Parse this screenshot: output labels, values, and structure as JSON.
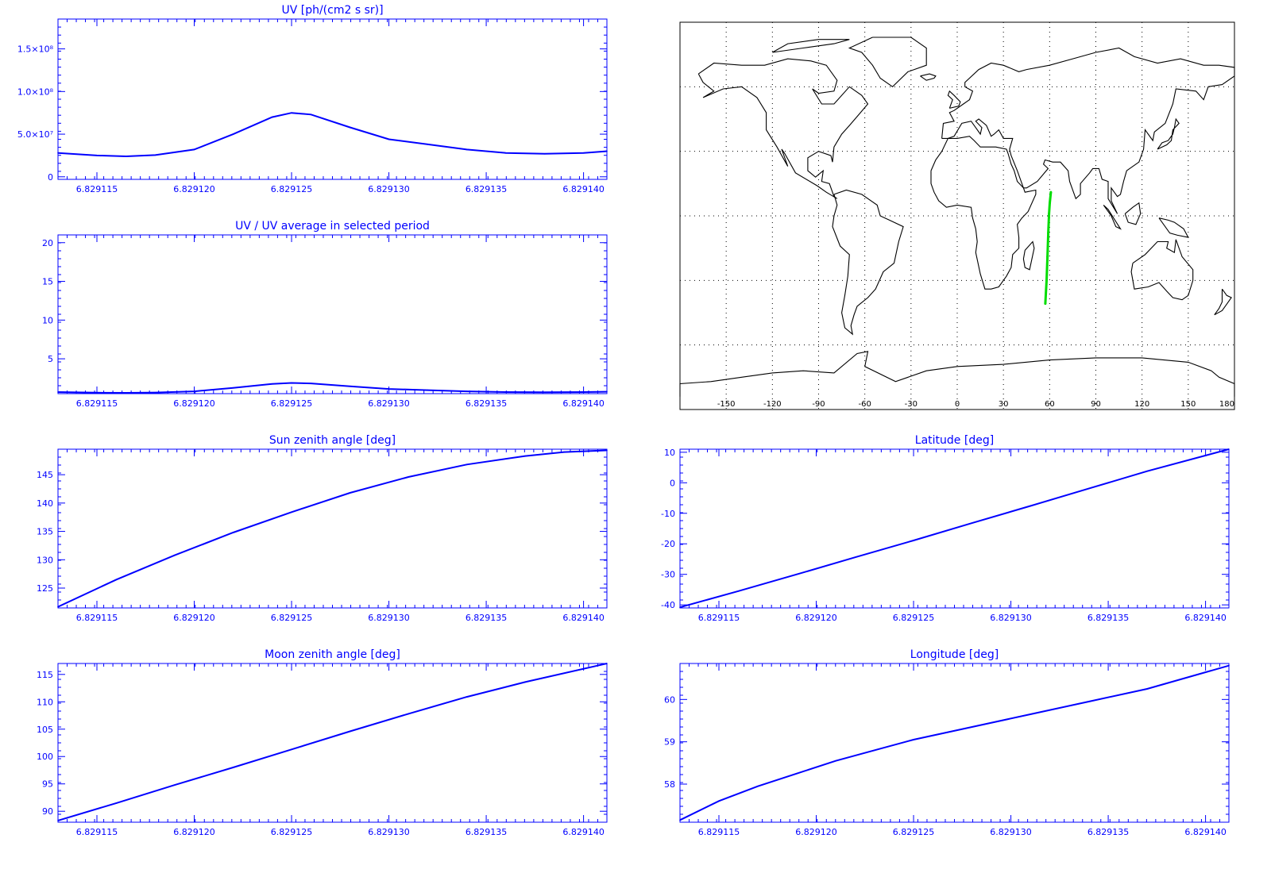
{
  "colors": {
    "axis": "#0000ff",
    "series": "#0000ff",
    "map_line": "#000000",
    "track": "#00dd00",
    "background": "#ffffff"
  },
  "chart_data": [
    {
      "id": "uv",
      "type": "line",
      "title": "UV [ph/(cm2 s sr)]",
      "xlim": [
        6.829113,
        6.8291412
      ],
      "ylim": [
        -3000000,
        185000000
      ],
      "x_ticks": [
        6.829115,
        6.82912,
        6.829125,
        6.82913,
        6.829135,
        6.82914
      ],
      "x_tick_labels": [
        "6.829115",
        "6.829120",
        "6.829125",
        "6.829130",
        "6.829135",
        "6.829140"
      ],
      "y_ticks": [
        0,
        50000000,
        100000000,
        150000000
      ],
      "y_tick_labels": [
        "0",
        "5.0×10⁷",
        "1.0×10⁸",
        "1.5×10⁸"
      ],
      "x": [
        6.829113,
        6.829115,
        6.8291165,
        6.829118,
        6.82912,
        6.829122,
        6.829124,
        6.829125,
        6.829126,
        6.829128,
        6.82913,
        6.829132,
        6.829134,
        6.829136,
        6.829138,
        6.82914,
        6.8291412
      ],
      "values": [
        28000000,
        25000000,
        24000000,
        25500000,
        32000000,
        50000000,
        70000000,
        75000000,
        73000000,
        58000000,
        44000000,
        38000000,
        32000000,
        28000000,
        27000000,
        28000000,
        30000000
      ]
    },
    {
      "id": "uv-ratio",
      "type": "line",
      "title": "UV / UV average in selected period",
      "xlim": [
        6.829113,
        6.8291412
      ],
      "ylim": [
        0.5,
        21
      ],
      "x_ticks": [
        6.829115,
        6.82912,
        6.829125,
        6.82913,
        6.829135,
        6.82914
      ],
      "x_tick_labels": [
        "6.829115",
        "6.829120",
        "6.829125",
        "6.829130",
        "6.829135",
        "6.829140"
      ],
      "y_ticks": [
        5,
        10,
        15,
        20
      ],
      "y_tick_labels": [
        "5",
        "10",
        "15",
        "20"
      ],
      "x": [
        6.829113,
        6.829115,
        6.8291165,
        6.829118,
        6.82912,
        6.829122,
        6.829124,
        6.829125,
        6.829126,
        6.829128,
        6.82913,
        6.829132,
        6.829134,
        6.829136,
        6.829138,
        6.82914,
        6.8291412
      ],
      "values": [
        0.7,
        0.62,
        0.6,
        0.64,
        0.8,
        1.25,
        1.75,
        1.88,
        1.82,
        1.45,
        1.1,
        0.95,
        0.8,
        0.7,
        0.68,
        0.7,
        0.75
      ]
    },
    {
      "id": "sun-zenith",
      "type": "line",
      "title": "Sun zenith angle [deg]",
      "xlim": [
        6.829113,
        6.8291412
      ],
      "ylim": [
        121.5,
        149.5
      ],
      "x_ticks": [
        6.829115,
        6.82912,
        6.829125,
        6.82913,
        6.829135,
        6.82914
      ],
      "x_tick_labels": [
        "6.829115",
        "6.829120",
        "6.829125",
        "6.829130",
        "6.829135",
        "6.829140"
      ],
      "y_ticks": [
        125,
        130,
        135,
        140,
        145
      ],
      "y_tick_labels": [
        "125",
        "130",
        "135",
        "140",
        "145"
      ],
      "x": [
        6.829113,
        6.829116,
        6.829119,
        6.829122,
        6.829125,
        6.829128,
        6.829131,
        6.829134,
        6.829137,
        6.829139,
        6.8291412
      ],
      "values": [
        121.7,
        126.5,
        130.8,
        134.8,
        138.4,
        141.8,
        144.6,
        146.8,
        148.3,
        149.0,
        149.3
      ]
    },
    {
      "id": "latitude",
      "type": "line",
      "title": "Latitude [deg]",
      "xlim": [
        6.829113,
        6.8291412
      ],
      "ylim": [
        -41,
        11
      ],
      "x_ticks": [
        6.829115,
        6.82912,
        6.829125,
        6.82913,
        6.829135,
        6.82914
      ],
      "x_tick_labels": [
        "6.829115",
        "6.829120",
        "6.829125",
        "6.829130",
        "6.829135",
        "6.829140"
      ],
      "y_ticks": [
        -40,
        -30,
        -20,
        -10,
        0,
        10
      ],
      "y_tick_labels": [
        "-40",
        "-30",
        "-20",
        "-10",
        "0",
        "10"
      ],
      "x": [
        6.829113,
        6.829116,
        6.829119,
        6.829122,
        6.829125,
        6.829128,
        6.829131,
        6.829134,
        6.829137,
        6.8291412
      ],
      "values": [
        -40.8,
        -35.5,
        -30.0,
        -24.4,
        -18.9,
        -13.2,
        -7.6,
        -1.9,
        3.8,
        11.0
      ]
    },
    {
      "id": "moon-zenith",
      "type": "line",
      "title": "Moon zenith angle [deg]",
      "xlim": [
        6.829113,
        6.8291412
      ],
      "ylim": [
        88,
        117
      ],
      "x_ticks": [
        6.829115,
        6.82912,
        6.829125,
        6.82913,
        6.829135,
        6.82914
      ],
      "x_tick_labels": [
        "6.829115",
        "6.829120",
        "6.829125",
        "6.829130",
        "6.829135",
        "6.829140"
      ],
      "y_ticks": [
        90,
        95,
        100,
        105,
        110,
        115
      ],
      "y_tick_labels": [
        "90",
        "95",
        "100",
        "105",
        "110",
        "115"
      ],
      "x": [
        6.829113,
        6.829116,
        6.829119,
        6.829122,
        6.829125,
        6.829128,
        6.829131,
        6.829134,
        6.829137,
        6.8291412
      ],
      "values": [
        88.3,
        91.5,
        94.8,
        98.0,
        101.3,
        104.6,
        107.8,
        110.9,
        113.6,
        117.0
      ]
    },
    {
      "id": "longitude",
      "type": "line",
      "title": "Longitude [deg]",
      "xlim": [
        6.829113,
        6.8291412
      ],
      "ylim": [
        57.1,
        60.85
      ],
      "x_ticks": [
        6.829115,
        6.82912,
        6.829125,
        6.82913,
        6.829135,
        6.82914
      ],
      "x_tick_labels": [
        "6.829115",
        "6.829120",
        "6.829125",
        "6.829130",
        "6.829135",
        "6.829140"
      ],
      "y_ticks": [
        58,
        59,
        60
      ],
      "y_tick_labels": [
        "58",
        "59",
        "60"
      ],
      "x": [
        6.829113,
        6.829115,
        6.829117,
        6.829119,
        6.829121,
        6.829123,
        6.829125,
        6.829128,
        6.829131,
        6.829134,
        6.829137,
        6.8291412
      ],
      "values": [
        57.15,
        57.6,
        57.95,
        58.25,
        58.55,
        58.8,
        59.05,
        59.35,
        59.65,
        59.95,
        60.25,
        60.8
      ]
    },
    {
      "id": "ground-track-map",
      "type": "scatter",
      "title": "",
      "xlim": [
        -180,
        180
      ],
      "ylim": [
        -90,
        90
      ],
      "x_ticks": [
        -150,
        -120,
        -90,
        -60,
        -30,
        0,
        30,
        60,
        90,
        120,
        150,
        180
      ],
      "x_tick_labels": [
        "-150",
        "-120",
        "-90",
        "-60",
        "-30",
        "0",
        "30",
        "60",
        "90",
        "120",
        "150",
        "180"
      ],
      "gridlines_lon": [
        -150,
        -120,
        -90,
        -60,
        -30,
        0,
        30,
        60,
        90,
        120,
        150
      ],
      "gridlines_lat": [
        -60,
        -30,
        0,
        30,
        60
      ],
      "track_lon": [
        57.2,
        58.0,
        58.6,
        59.1,
        59.6,
        60.1,
        60.8
      ],
      "track_lat": [
        -40.8,
        -30.0,
        -19.0,
        -8.0,
        1.0,
        6.0,
        11.0
      ]
    }
  ]
}
